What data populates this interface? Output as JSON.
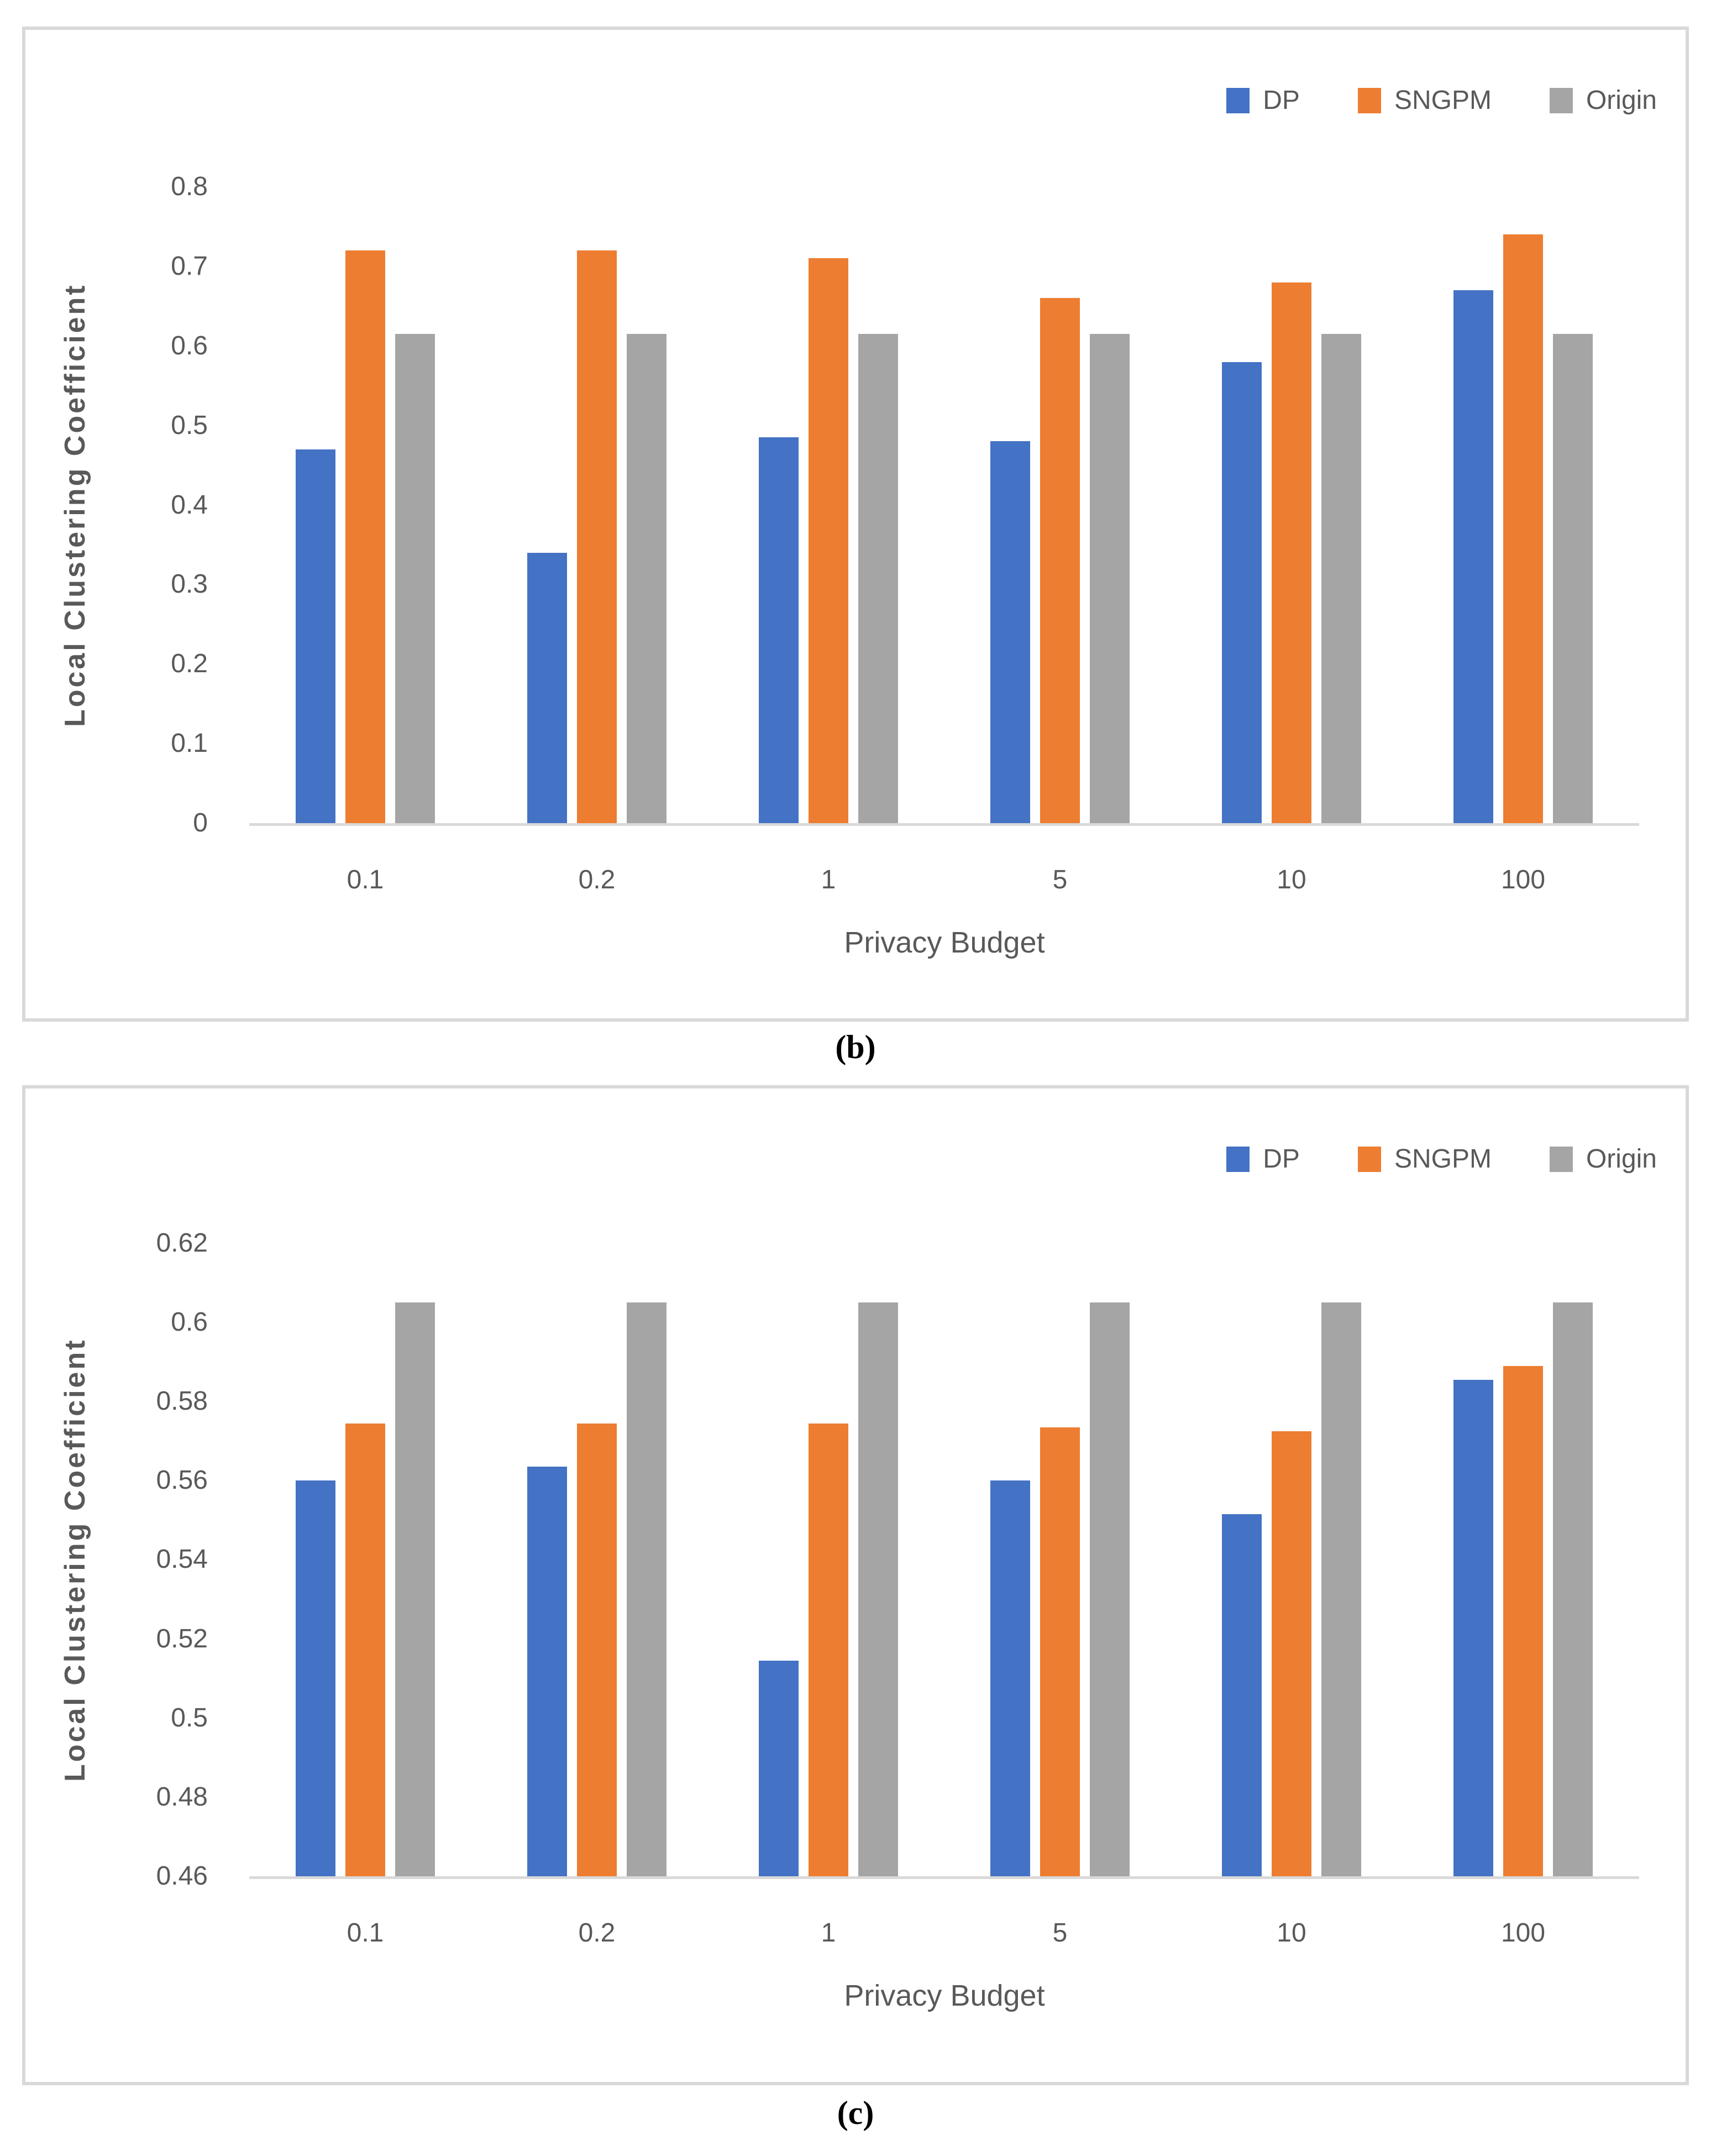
{
  "figure": {
    "background": "#FFFFFF"
  },
  "colors": {
    "axis_text": "#595959",
    "axis_line": "#D9D9D9",
    "panel_border": "#D9D9D9",
    "caption_text": "#000000",
    "dp": "#4472C4",
    "sngpm": "#ED7D31",
    "origin": "#A5A5A5"
  },
  "chart_data": [
    {
      "id": "b",
      "type": "bar",
      "caption": "(b)",
      "title": "",
      "xlabel": "Privacy Budget",
      "ylabel": "Local Clustering Coefficient",
      "categories": [
        "0.1",
        "0.2",
        "1",
        "5",
        "10",
        "100"
      ],
      "ylim": [
        0,
        0.8
      ],
      "yticks": [
        "0",
        "0.1",
        "0.2",
        "0.3",
        "0.4",
        "0.5",
        "0.6",
        "0.7",
        "0.8"
      ],
      "grid": false,
      "legend_position": "top-right",
      "series": [
        {
          "name": "DP",
          "color": "#4472C4",
          "values": [
            0.47,
            0.34,
            0.485,
            0.48,
            0.58,
            0.67
          ]
        },
        {
          "name": "SNGPM",
          "color": "#ED7D31",
          "values": [
            0.72,
            0.72,
            0.71,
            0.66,
            0.68,
            0.74
          ]
        },
        {
          "name": "Origin",
          "color": "#A5A5A5",
          "values": [
            0.615,
            0.615,
            0.615,
            0.615,
            0.615,
            0.615
          ]
        }
      ]
    },
    {
      "id": "c",
      "type": "bar",
      "caption": "(c)",
      "title": "",
      "xlabel": "Privacy Budget",
      "ylabel": "Local Clustering Coefficient",
      "categories": [
        "0.1",
        "0.2",
        "1",
        "5",
        "10",
        "100"
      ],
      "ylim": [
        0.46,
        0.62
      ],
      "yticks": [
        "0.46",
        "0.48",
        "0.5",
        "0.52",
        "0.54",
        "0.56",
        "0.58",
        "0.6",
        "0.62"
      ],
      "grid": false,
      "legend_position": "top-right",
      "series": [
        {
          "name": "DP",
          "color": "#4472C4",
          "values": [
            0.56,
            0.5635,
            0.5145,
            0.56,
            0.5515,
            0.5855
          ]
        },
        {
          "name": "SNGPM",
          "color": "#ED7D31",
          "values": [
            0.5745,
            0.5745,
            0.5745,
            0.5735,
            0.5725,
            0.589
          ]
        },
        {
          "name": "Origin",
          "color": "#A5A5A5",
          "values": [
            0.605,
            0.605,
            0.605,
            0.605,
            0.605,
            0.605
          ]
        }
      ]
    }
  ]
}
